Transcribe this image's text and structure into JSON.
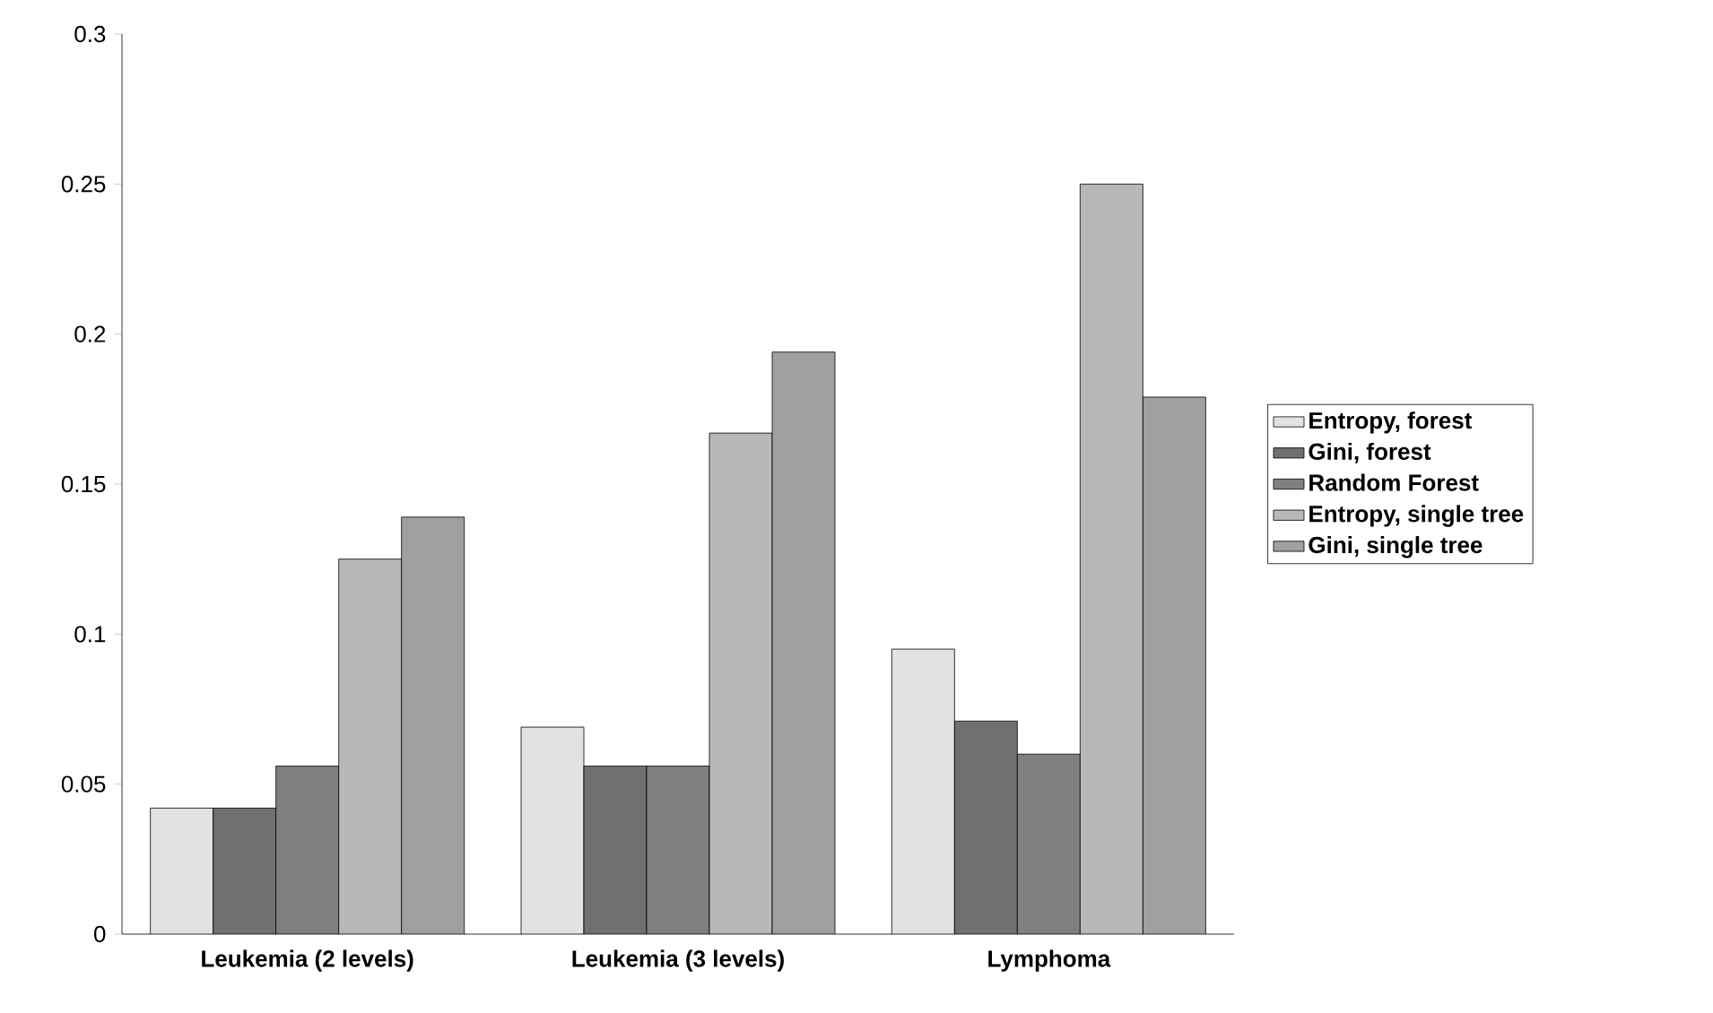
{
  "chart_data": {
    "type": "bar",
    "categories": [
      "Leukemia (2 levels)",
      "Leukemia (3 levels)",
      "Lymphoma"
    ],
    "series": [
      {
        "name": "Entropy, forest",
        "color": "#e2e2e2",
        "values": [
          0.042,
          0.069,
          0.095
        ]
      },
      {
        "name": "Gini, forest",
        "color": "#707070",
        "values": [
          0.042,
          0.056,
          0.071
        ]
      },
      {
        "name": "Random Forest",
        "color": "#808080",
        "values": [
          0.056,
          0.056,
          0.06
        ]
      },
      {
        "name": "Entropy, single tree",
        "color": "#b8b8b8",
        "values": [
          0.125,
          0.167,
          0.25
        ]
      },
      {
        "name": "Gini, single tree",
        "color": "#a0a0a0",
        "values": [
          0.139,
          0.194,
          0.179
        ]
      }
    ],
    "ylim": [
      0,
      0.3
    ],
    "yticks": [
      0,
      0.05,
      0.1,
      0.15,
      0.2,
      0.25,
      0.3
    ],
    "grid": false,
    "legend": "right"
  }
}
